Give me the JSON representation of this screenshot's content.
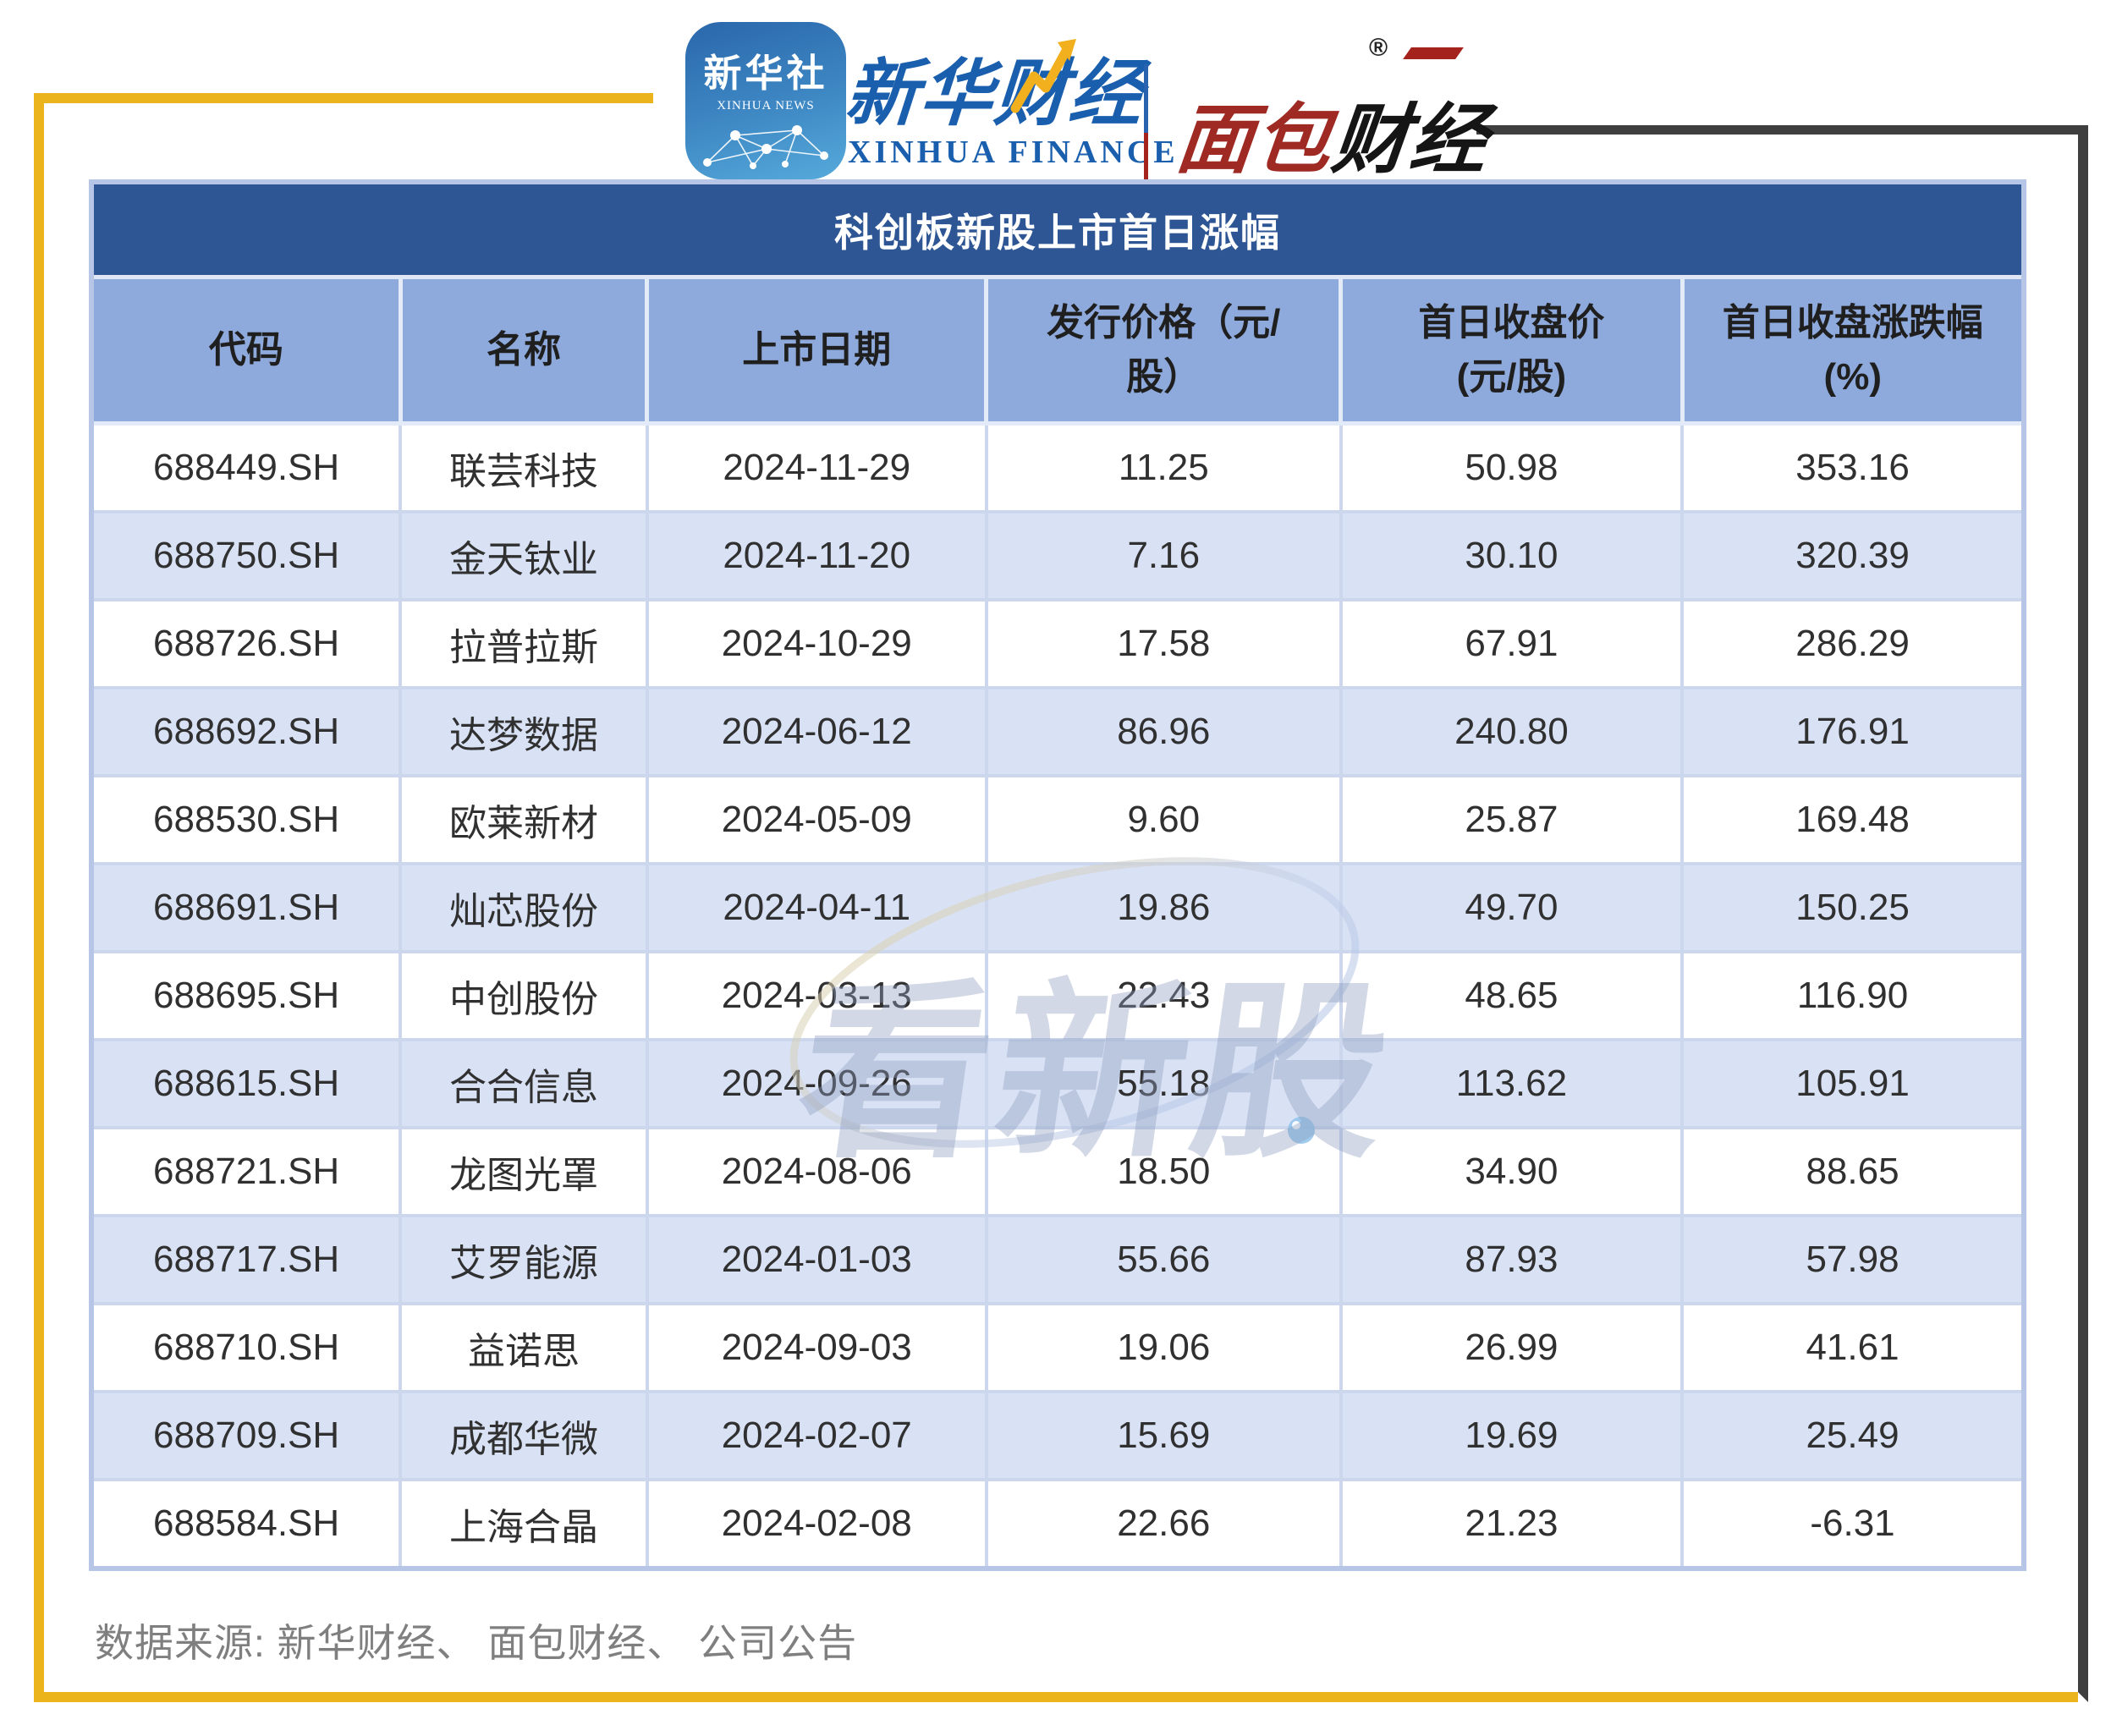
{
  "header": {
    "xinhua_icon": {
      "title": "新华社",
      "subtitle": "XINHUA NEWS"
    },
    "xinhua_finance": {
      "script": "新华财经",
      "en": "XINHUA FINANCE"
    },
    "bread_finance": {
      "part_red": "面包",
      "part_black": "财经",
      "reg": "®"
    }
  },
  "chart_data": {
    "type": "table",
    "title": "科创板新股上市首日涨幅",
    "columns": [
      {
        "l1": "代码",
        "l2": ""
      },
      {
        "l1": "名称",
        "l2": ""
      },
      {
        "l1": "上市日期",
        "l2": ""
      },
      {
        "l1": "发行价格（元/",
        "l2": "股）"
      },
      {
        "l1": "首日收盘价",
        "l2": "(元/股)"
      },
      {
        "l1": "首日收盘涨跌幅",
        "l2": "(%)"
      }
    ],
    "rows": [
      [
        "688449.SH",
        "联芸科技",
        "2024-11-29",
        "11.25",
        "50.98",
        "353.16"
      ],
      [
        "688750.SH",
        "金天钛业",
        "2024-11-20",
        "7.16",
        "30.10",
        "320.39"
      ],
      [
        "688726.SH",
        "拉普拉斯",
        "2024-10-29",
        "17.58",
        "67.91",
        "286.29"
      ],
      [
        "688692.SH",
        "达梦数据",
        "2024-06-12",
        "86.96",
        "240.80",
        "176.91"
      ],
      [
        "688530.SH",
        "欧莱新材",
        "2024-05-09",
        "9.60",
        "25.87",
        "169.48"
      ],
      [
        "688691.SH",
        "灿芯股份",
        "2024-04-11",
        "19.86",
        "49.70",
        "150.25"
      ],
      [
        "688695.SH",
        "中创股份",
        "2024-03-13",
        "22.43",
        "48.65",
        "116.90"
      ],
      [
        "688615.SH",
        "合合信息",
        "2024-09-26",
        "55.18",
        "113.62",
        "105.91"
      ],
      [
        "688721.SH",
        "龙图光罩",
        "2024-08-06",
        "18.50",
        "34.90",
        "88.65"
      ],
      [
        "688717.SH",
        "艾罗能源",
        "2024-01-03",
        "55.66",
        "87.93",
        "57.98"
      ],
      [
        "688710.SH",
        "益诺思",
        "2024-09-03",
        "19.06",
        "26.99",
        "41.61"
      ],
      [
        "688709.SH",
        "成都华微",
        "2024-02-07",
        "15.69",
        "19.69",
        "25.49"
      ],
      [
        "688584.SH",
        "上海合晶",
        "2024-02-08",
        "22.66",
        "21.23",
        "-6.31"
      ]
    ]
  },
  "watermark": "看新股",
  "footer": {
    "source": "数据来源: 新华财经、 面包财经、 公司公告"
  },
  "colors": {
    "title_bar": "#2e5694",
    "header_row": "#8ea9db",
    "row_alt": "#d9e2f5",
    "frame_yellow": "#ebb31c",
    "frame_dark": "#3f3f3f",
    "xinhua_blue": "#1a5fae",
    "bread_red": "#9e2a23"
  }
}
